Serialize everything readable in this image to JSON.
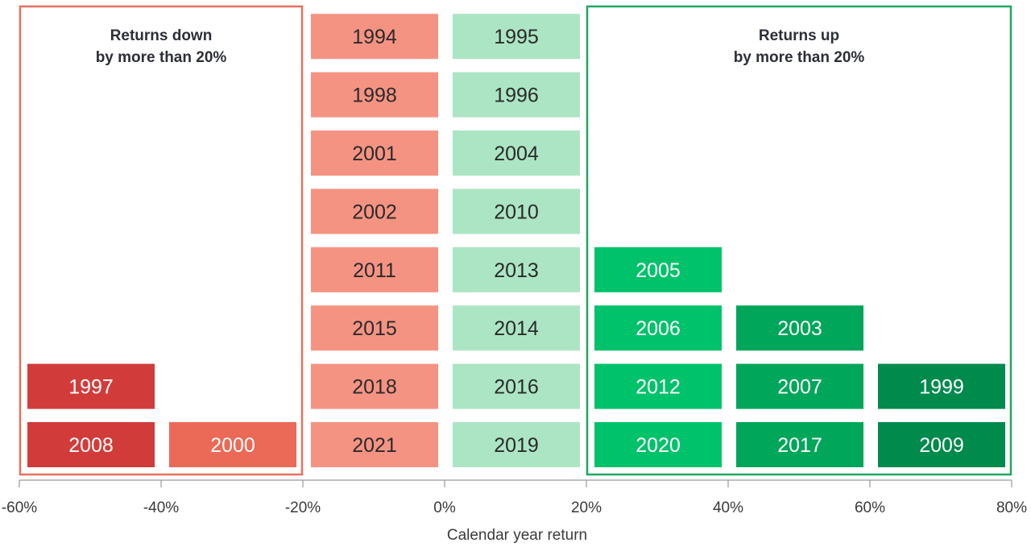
{
  "chart_data": {
    "type": "histogram",
    "title": "",
    "xlabel": "Calendar year return",
    "ylabel": "",
    "xlim": [
      -60,
      80
    ],
    "x_ticks": [
      "-60%",
      "-40%",
      "-20%",
      "0%",
      "20%",
      "40%",
      "60%",
      "80%"
    ],
    "grid": false,
    "annotations": [
      {
        "name": "returns-down-box",
        "label_line1": "Returns down",
        "label_line2": "by more than 20%",
        "range": [
          -60,
          -20
        ],
        "color": "#e8705e"
      },
      {
        "name": "returns-up-box",
        "label_line1": "Returns up",
        "label_line2": "by more than 20%",
        "range": [
          20,
          80
        ],
        "color": "#1fa860"
      }
    ],
    "bins": [
      {
        "range": [
          -60,
          -40
        ],
        "color": "#d13c3a",
        "text_color": "#ffffff",
        "years": [
          "2008",
          "1997"
        ]
      },
      {
        "range": [
          -40,
          -20
        ],
        "color": "#eb6957",
        "text_color": "#ffffff",
        "years": [
          "2000"
        ]
      },
      {
        "range": [
          -20,
          0
        ],
        "color": "#f59383",
        "text_color": "#2a2a2a",
        "years": [
          "2021",
          "2018",
          "2015",
          "2011",
          "2002",
          "2001",
          "1998",
          "1994"
        ]
      },
      {
        "range": [
          0,
          20
        ],
        "color": "#ace5c4",
        "text_color": "#2a2a2a",
        "years": [
          "2019",
          "2016",
          "2014",
          "2013",
          "2010",
          "2004",
          "1996",
          "1995"
        ]
      },
      {
        "range": [
          20,
          40
        ],
        "color": "#00c26a",
        "text_color": "#ffffff",
        "years": [
          "2020",
          "2012",
          "2006",
          "2005"
        ]
      },
      {
        "range": [
          40,
          60
        ],
        "color": "#00a659",
        "text_color": "#ffffff",
        "years": [
          "2017",
          "2007",
          "2003"
        ]
      },
      {
        "range": [
          60,
          80
        ],
        "color": "#008a4c",
        "text_color": "#ffffff",
        "years": [
          "2009",
          "1999"
        ]
      }
    ]
  }
}
